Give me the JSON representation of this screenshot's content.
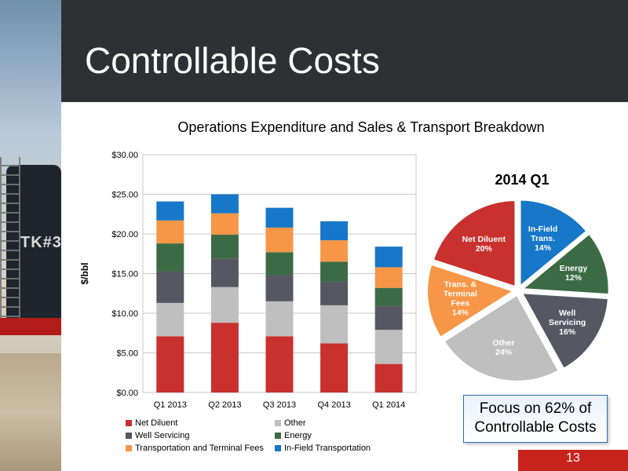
{
  "slide": {
    "title": "Controllable Costs",
    "page_number": "13",
    "callout_line1": "Focus on 62% of",
    "callout_line2": "Controllable Costs",
    "background_photo_text": "TK#3"
  },
  "chart_data": [
    {
      "type": "bar",
      "stacked": true,
      "title": "Operations Expenditure and Sales & Transport Breakdown",
      "ylabel": "$/bbl",
      "xlabel": "",
      "ylim": [
        0,
        30
      ],
      "yticks": [
        "$0.00",
        "$5.00",
        "$10.00",
        "$15.00",
        "$20.00",
        "$25.00",
        "$30.00"
      ],
      "ytick_values": [
        0,
        5,
        10,
        15,
        20,
        25,
        30
      ],
      "grid": true,
      "legend_position": "bottom",
      "categories": [
        "Q1 2013",
        "Q2 2013",
        "Q3 2013",
        "Q4 2013",
        "Q1   2014"
      ],
      "series": [
        {
          "name": "Net Diluent",
          "color": "#c8312d",
          "values": [
            7.1,
            8.8,
            7.1,
            6.2,
            3.6
          ]
        },
        {
          "name": "Other",
          "color": "#bfbfbf",
          "values": [
            4.2,
            4.5,
            4.4,
            4.8,
            4.3
          ]
        },
        {
          "name": "Well Servicing",
          "color": "#575763",
          "values": [
            4.0,
            3.6,
            3.3,
            3.0,
            3.0
          ]
        },
        {
          "name": "Energy",
          "color": "#3b6b45",
          "values": [
            3.5,
            3.0,
            2.9,
            2.5,
            2.3
          ]
        },
        {
          "name": "Transportation and Terminal Fees",
          "color": "#f79646",
          "values": [
            2.9,
            2.7,
            3.1,
            2.7,
            2.6
          ]
        },
        {
          "name": "In-Field Transportation",
          "color": "#1777c8",
          "values": [
            2.4,
            2.4,
            2.5,
            2.4,
            2.6
          ]
        }
      ]
    },
    {
      "type": "pie",
      "title": "2014 Q1",
      "slices": [
        {
          "label_lines": [
            "In-Field",
            "Trans."
          ],
          "value": 14,
          "pct_label": "14%",
          "color": "#1777c8",
          "text_color": "#ffffff"
        },
        {
          "label_lines": [
            "Energy"
          ],
          "value": 12,
          "pct_label": "12%",
          "color": "#3b6b45",
          "text_color": "#ffffff"
        },
        {
          "label_lines": [
            "Well",
            "Servicing"
          ],
          "value": 16,
          "pct_label": "16%",
          "color": "#575763",
          "text_color": "#ffffff"
        },
        {
          "label_lines": [
            "Other"
          ],
          "value": 24,
          "pct_label": "24%",
          "color": "#bfbfbf",
          "text_color": "#ffffff"
        },
        {
          "label_lines": [
            "Trans. &",
            "Terminal",
            "Fees"
          ],
          "value": 14,
          "pct_label": "14%",
          "color": "#f79646",
          "text_color": "#ffffff"
        },
        {
          "label_lines": [
            "Net Diluent"
          ],
          "value": 20,
          "pct_label": "20%",
          "color": "#c8312d",
          "text_color": "#ffffff"
        }
      ]
    }
  ]
}
